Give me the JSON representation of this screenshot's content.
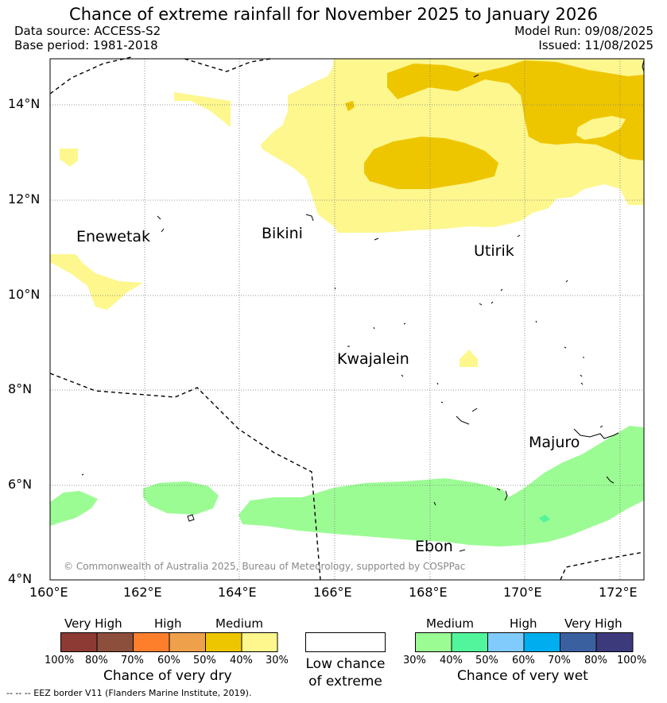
{
  "header": {
    "title": "Chance of extreme rainfall for November 2025 to January 2026",
    "data_source": "Data source: ACCESS-S2",
    "base_period": "Base period: 1981-2018",
    "model_run": "Model Run: 09/08/2025",
    "issued": "Issued: 11/08/2025"
  },
  "map": {
    "lon_range": [
      160,
      172.5
    ],
    "lat_range": [
      4,
      15
    ],
    "x_ticks": [
      "160°E",
      "162°E",
      "164°E",
      "166°E",
      "168°E",
      "170°E",
      "172°E"
    ],
    "y_ticks": [
      "14°N",
      "12°N",
      "10°N",
      "8°N",
      "6°N",
      "4°N"
    ],
    "places": [
      {
        "name": "Enewetak",
        "lon": 162.3,
        "lat": 11.35
      },
      {
        "name": "Bikini",
        "lon": 165.5,
        "lat": 11.6
      },
      {
        "name": "Utirik",
        "lon": 169.8,
        "lat": 11.2
      },
      {
        "name": "Kwajalein",
        "lon": 167.7,
        "lat": 8.72
      },
      {
        "name": "Majuro",
        "lon": 171.3,
        "lat": 7.1
      },
      {
        "name": "Ebon",
        "lon": 168.7,
        "lat": 4.6
      }
    ],
    "credit": "© Commonwealth of Australia 2025, Bureau of Meteorology, supported by COSPPac",
    "colors": {
      "dry_medium_light": "#fdf78e",
      "dry_medium_dark": "#eec600",
      "wet_medium_light": "#9cfc94",
      "wet_medium_dark": "#52f59b"
    }
  },
  "legend": {
    "dry": {
      "headings": [
        "Very High",
        "High",
        "Medium"
      ],
      "colors": [
        "#8e3a34",
        "#8c4f3c",
        "#fd7f2c",
        "#eea04b",
        "#eec600",
        "#fdf78e"
      ],
      "ticks": [
        "100%",
        "80%",
        "70%",
        "60%",
        "50%",
        "40%",
        "30%"
      ],
      "caption": "Chance of very dry"
    },
    "low": {
      "caption_line1": "Low chance",
      "caption_line2": "of extreme"
    },
    "wet": {
      "headings": [
        "Medium",
        "High",
        "Very High"
      ],
      "colors": [
        "#9cfc94",
        "#52f59b",
        "#80cbfb",
        "#00aeef",
        "#3a60a0",
        "#3d3a7c"
      ],
      "ticks": [
        "30%",
        "40%",
        "50%",
        "60%",
        "70%",
        "80%",
        "100%"
      ],
      "caption": "Chance of very wet"
    }
  },
  "footnote": "--  --  -- EEZ border V11 (Flanders Marine Institute, 2019)."
}
